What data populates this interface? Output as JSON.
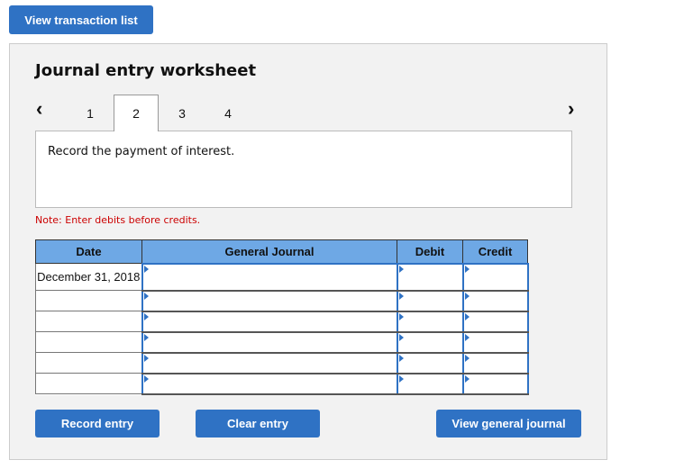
{
  "top_button": "View transaction list",
  "panel": {
    "title": "Journal entry worksheet",
    "tabs": [
      "1",
      "2",
      "3",
      "4"
    ],
    "active_tab": "2",
    "prev_icon": "chevron-left-icon",
    "next_icon": "chevron-right-icon",
    "description": "Record the payment of interest.",
    "note": "Note: Enter debits before credits."
  },
  "table": {
    "headers": [
      "Date",
      "General Journal",
      "Debit",
      "Credit"
    ],
    "rows": [
      {
        "date": "December 31, 2018",
        "account": "",
        "debit": "",
        "credit": ""
      },
      {
        "date": "",
        "account": "",
        "debit": "",
        "credit": ""
      },
      {
        "date": "",
        "account": "",
        "debit": "",
        "credit": ""
      },
      {
        "date": "",
        "account": "",
        "debit": "",
        "credit": ""
      },
      {
        "date": "",
        "account": "",
        "debit": "",
        "credit": ""
      },
      {
        "date": "",
        "account": "",
        "debit": "",
        "credit": ""
      }
    ]
  },
  "buttons": {
    "record": "Record entry",
    "clear": "Clear entry",
    "view_journal": "View general journal"
  },
  "colors": {
    "button": "#2f72c4",
    "header": "#6ea8e5",
    "note": "#cc0000"
  }
}
